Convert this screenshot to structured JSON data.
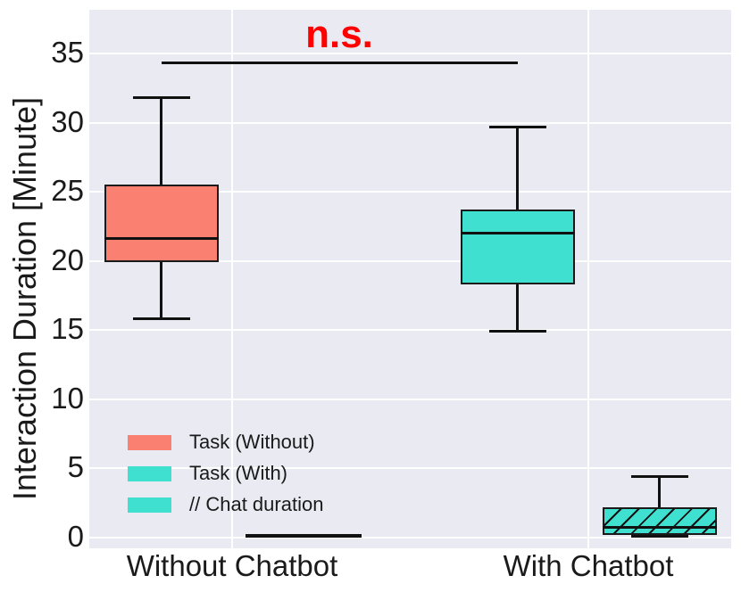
{
  "figure": {
    "background": "#ffffff",
    "plot_background": "#eaeaf2",
    "grid_color": "#ffffff",
    "box_edge_color": "#1a1a1a"
  },
  "chart_data": {
    "type": "boxplot",
    "title": "",
    "xlabel": "",
    "ylabel": "Interaction Duration [Minute]",
    "ylim": [
      -0.8,
      38.5
    ],
    "yticks": [
      0,
      5,
      10,
      15,
      20,
      25,
      30,
      35
    ],
    "categories": [
      "Without Chatbot",
      "With Chatbot"
    ],
    "grid": true,
    "legend": {
      "position": "lower-left",
      "entries": [
        {
          "label": "Task (Without)",
          "color": "#fa8072",
          "hatch": false
        },
        {
          "label": "Task (With)",
          "color": "#40e0d0",
          "hatch": false
        },
        {
          "label": "// Chat duration",
          "color": "#40e0d0",
          "hatch": true
        }
      ]
    },
    "series": [
      {
        "name": "Task (Without)",
        "color": "#fa8072",
        "hatch": false,
        "column": "task",
        "boxes": [
          {
            "category": "Without Chatbot",
            "whisker_low": 15.8,
            "q1": 19.9,
            "median": 21.6,
            "q3": 25.5,
            "whisker_high": 31.8
          }
        ]
      },
      {
        "name": "Task (With)",
        "color": "#40e0d0",
        "hatch": false,
        "column": "task",
        "boxes": [
          {
            "category": "With Chatbot",
            "whisker_low": 14.9,
            "q1": 18.3,
            "median": 22.0,
            "q3": 23.7,
            "whisker_high": 29.7
          }
        ]
      },
      {
        "name": "Chat duration",
        "color": "#40e0d0",
        "hatch": true,
        "column": "chat",
        "boxes": [
          {
            "category": "Without Chatbot",
            "whisker_low": 0.1,
            "q1": 0.1,
            "median": 0.1,
            "q3": 0.1,
            "whisker_high": 0.1
          },
          {
            "category": "With Chatbot",
            "whisker_low": 0.1,
            "q1": 0.2,
            "median": 0.75,
            "q3": 2.2,
            "whisker_high": 4.4
          }
        ]
      }
    ],
    "annotation": {
      "text": "n.s.",
      "color": "#fd0000",
      "y": 34.3,
      "spans_between_series": [
        "Task (Without)",
        "Task (With)"
      ]
    }
  }
}
